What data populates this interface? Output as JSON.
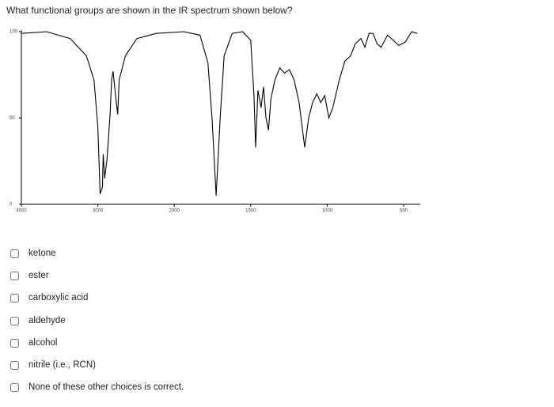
{
  "question": "What functional groups are shown in the IR spectrum shown below?",
  "chart_data": {
    "type": "line",
    "color": "#000000",
    "x": [
      4000,
      3670,
      3360,
      3150,
      3050,
      3000,
      2970,
      2940,
      2930,
      2910,
      2880,
      2840,
      2820,
      2800,
      2780,
      2740,
      2720,
      2640,
      2490,
      2235,
      1937,
      1832,
      1780,
      1753,
      1726,
      1700,
      1674,
      1621,
      1553,
      1500,
      1479,
      1468,
      1453,
      1432,
      1416,
      1400,
      1384,
      1368,
      1342,
      1310,
      1279,
      1247,
      1216,
      1184,
      1147,
      1121,
      1095,
      1068,
      1042,
      1016,
      989,
      963,
      921,
      884,
      847,
      816,
      779,
      753,
      726,
      700,
      674,
      647,
      605,
      568,
      532,
      489,
      447,
      411
    ],
    "values": [
      99,
      100,
      96,
      86,
      72,
      45,
      6,
      10,
      29,
      15,
      26,
      52,
      72,
      77,
      68,
      52,
      72,
      86,
      96,
      99,
      100,
      98,
      82,
      50,
      5,
      50,
      86,
      99,
      100,
      95,
      63,
      33,
      66,
      56,
      68,
      50,
      43,
      61,
      72,
      79,
      76,
      78,
      72,
      59,
      33,
      50,
      59,
      64,
      59,
      63,
      50,
      56,
      72,
      83,
      86,
      93,
      96,
      91,
      99,
      99,
      93,
      91,
      98,
      95,
      92,
      94,
      100,
      99
    ],
    "xlim": [
      4000,
      400
    ],
    "ylim": [
      0,
      100
    ],
    "xticks": [
      4000,
      3000,
      2000,
      1500,
      1000,
      500
    ],
    "yticks": [
      0,
      50,
      100
    ]
  },
  "choices": [
    "ketone",
    "ester",
    "carboxylic acid",
    "aldehyde",
    "alcohol",
    "nitrile (i.e., RCN)",
    "None of these other choices is correct."
  ]
}
